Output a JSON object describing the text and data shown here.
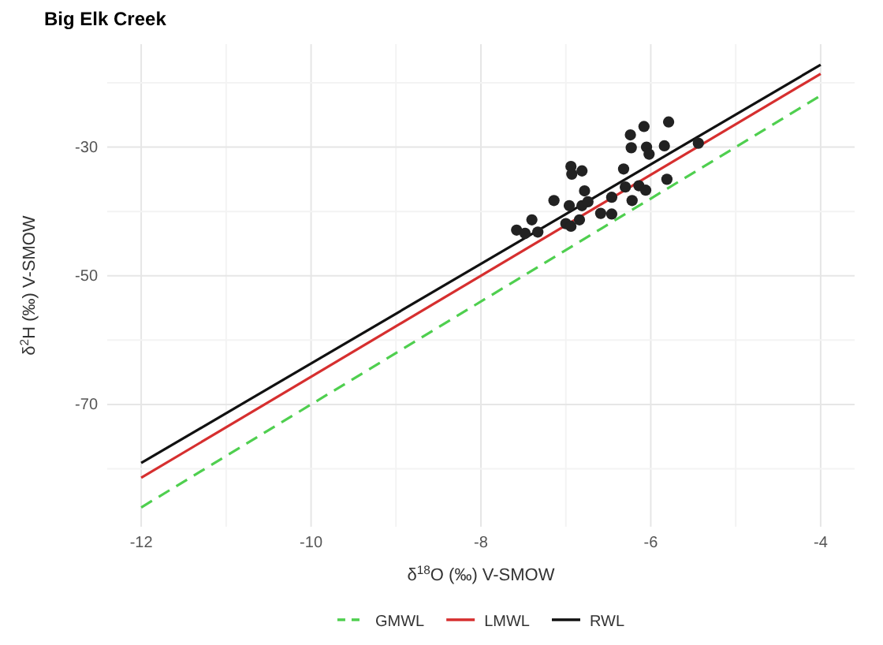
{
  "chart_data": {
    "type": "scatter",
    "title": "Big Elk Creek",
    "xlabel": "δ$^{18}$O (‰) V-SMOW",
    "ylabel": "δ$^{2}$H (‰) V-SMOW",
    "xlim": [
      -12.4,
      -3.6
    ],
    "ylim": [
      -89,
      -14
    ],
    "xticks": [
      -12,
      {
        "value": -11,
        "label": null
      },
      -10,
      {
        "value": -9,
        "label": null
      },
      -8,
      {
        "value": -7,
        "label": null
      },
      -6,
      {
        "value": -5,
        "label": null
      },
      -4
    ],
    "yticks": [
      {
        "value": -80,
        "label": null
      },
      -70,
      {
        "value": -60,
        "label": null
      },
      -50,
      {
        "value": -40,
        "label": null
      },
      -30,
      {
        "value": -20,
        "label": null
      }
    ],
    "grid": true,
    "legend": "bottom",
    "marker": "circle",
    "series": [
      {
        "color": "#222222",
        "x": [
          -7.58,
          -7.48,
          -7.4,
          -7.33,
          -7.14,
          -7.0,
          -6.94,
          -6.93,
          -6.94,
          -6.81,
          -6.96,
          -6.84,
          -6.78,
          -6.81,
          -6.74,
          -6.59,
          -6.46,
          -6.46,
          -6.32,
          -6.3,
          -6.24,
          -6.23,
          -6.08,
          -6.05,
          -6.02,
          -6.22,
          -6.14,
          -6.06,
          -5.84,
          -5.79,
          -5.81,
          -5.44
        ],
        "values": [
          -42.9,
          -43.4,
          -41.3,
          -43.2,
          -38.3,
          -41.9,
          -33.0,
          -34.2,
          -42.3,
          -33.7,
          -39.1,
          -41.3,
          -36.8,
          -39.1,
          -38.5,
          -40.3,
          -37.8,
          -40.4,
          -33.4,
          -36.2,
          -28.1,
          -30.1,
          -26.8,
          -30.0,
          -31.1,
          -38.3,
          -36.0,
          -36.7,
          -29.8,
          -26.1,
          -35.0,
          -29.4
        ]
      },
      {
        "type": "line",
        "name": "GMWL",
        "color": "#4fcf4f",
        "line_style": "dashed",
        "marker": "none",
        "x": [
          -12,
          -4
        ],
        "values": [
          -86,
          -22
        ]
      },
      {
        "type": "line",
        "name": "LMWL",
        "color": "#d62f2f",
        "line_style": "solid",
        "marker": "none",
        "x": [
          -12,
          -4
        ],
        "values": [
          -81.4,
          -18.6
        ]
      },
      {
        "type": "line",
        "name": "RWL",
        "color": "#111111",
        "line_style": "solid",
        "marker": "none",
        "x": [
          -12,
          -4
        ],
        "values": [
          -79.1,
          -17.2
        ]
      }
    ]
  }
}
